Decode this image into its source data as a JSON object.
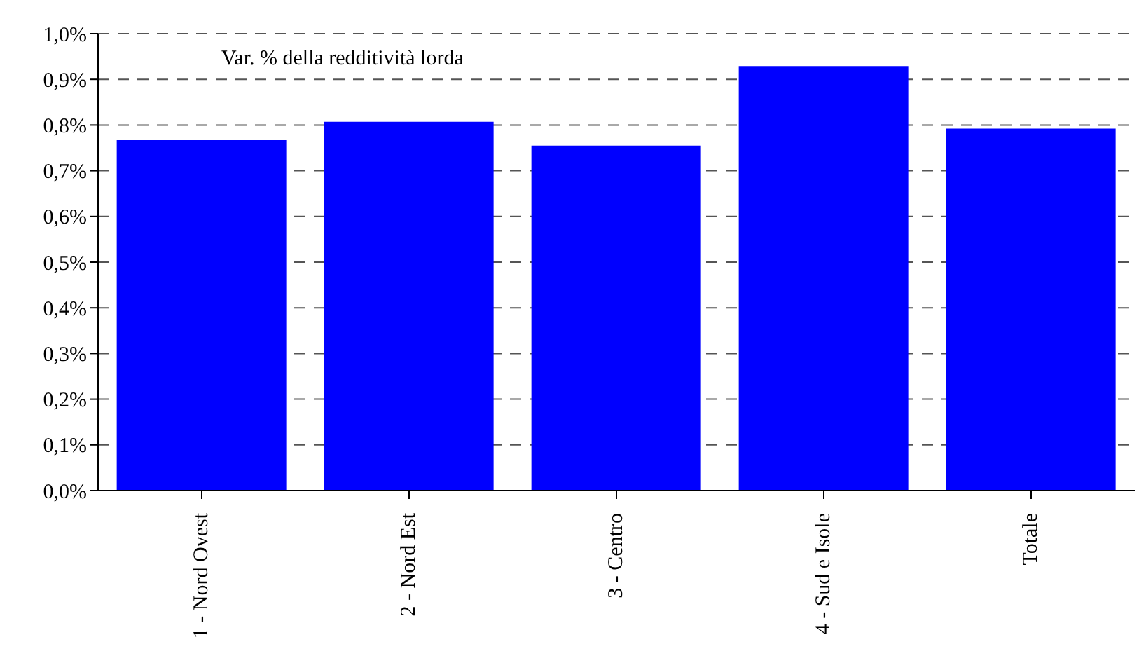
{
  "chart_data": {
    "type": "bar",
    "title": "Var. % della redditività lorda",
    "categories": [
      "1 - Nord Ovest",
      "2 - Nord Est",
      "3 - Centro",
      "4 - Sud e Isole",
      "Totale"
    ],
    "values": [
      0.767,
      0.807,
      0.755,
      0.929,
      0.792
    ],
    "color": "#0000ff",
    "ylim": [
      0,
      1.0
    ],
    "yticks": [
      {
        "value": 0,
        "label": "0,0%"
      },
      {
        "value": 0.1,
        "label": "0,1%"
      },
      {
        "value": 0.2,
        "label": "0,2%"
      },
      {
        "value": 0.3,
        "label": "0,3%"
      },
      {
        "value": 0.4,
        "label": "0,4%"
      },
      {
        "value": 0.5,
        "label": "0,5%"
      },
      {
        "value": 0.6,
        "label": "0,6%"
      },
      {
        "value": 0.7,
        "label": "0,7%"
      },
      {
        "value": 0.8,
        "label": "0,8%"
      },
      {
        "value": 0.9,
        "label": "0,9%"
      },
      {
        "value": 1.0,
        "label": "1,0%"
      }
    ],
    "grid": "y",
    "legend": false
  }
}
